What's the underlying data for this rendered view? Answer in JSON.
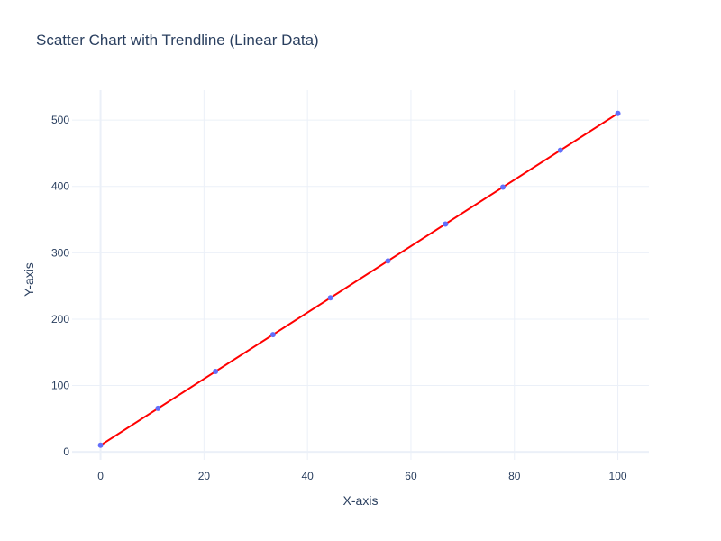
{
  "chart_data": {
    "type": "scatter",
    "title": "Scatter Chart with Trendline (Linear Data)",
    "xlabel": "X-axis",
    "ylabel": "Y-axis",
    "xlim": [
      -5.5,
      106
    ],
    "ylim": [
      -12,
      545
    ],
    "x_ticks": [
      0,
      20,
      40,
      60,
      80,
      100
    ],
    "y_ticks": [
      0,
      100,
      200,
      300,
      400,
      500
    ],
    "grid": true,
    "legend": "none",
    "series": [
      {
        "kind": "markers",
        "color": "#636efa",
        "x": [
          0,
          11.11,
          22.22,
          33.33,
          44.44,
          55.56,
          66.67,
          77.78,
          88.89,
          100
        ],
        "y": [
          10,
          65.56,
          121.11,
          176.67,
          232.22,
          287.78,
          343.33,
          398.89,
          454.44,
          510
        ]
      },
      {
        "kind": "line",
        "color": "#ff0000",
        "x": [
          0,
          100
        ],
        "y": [
          10,
          510
        ]
      }
    ]
  }
}
